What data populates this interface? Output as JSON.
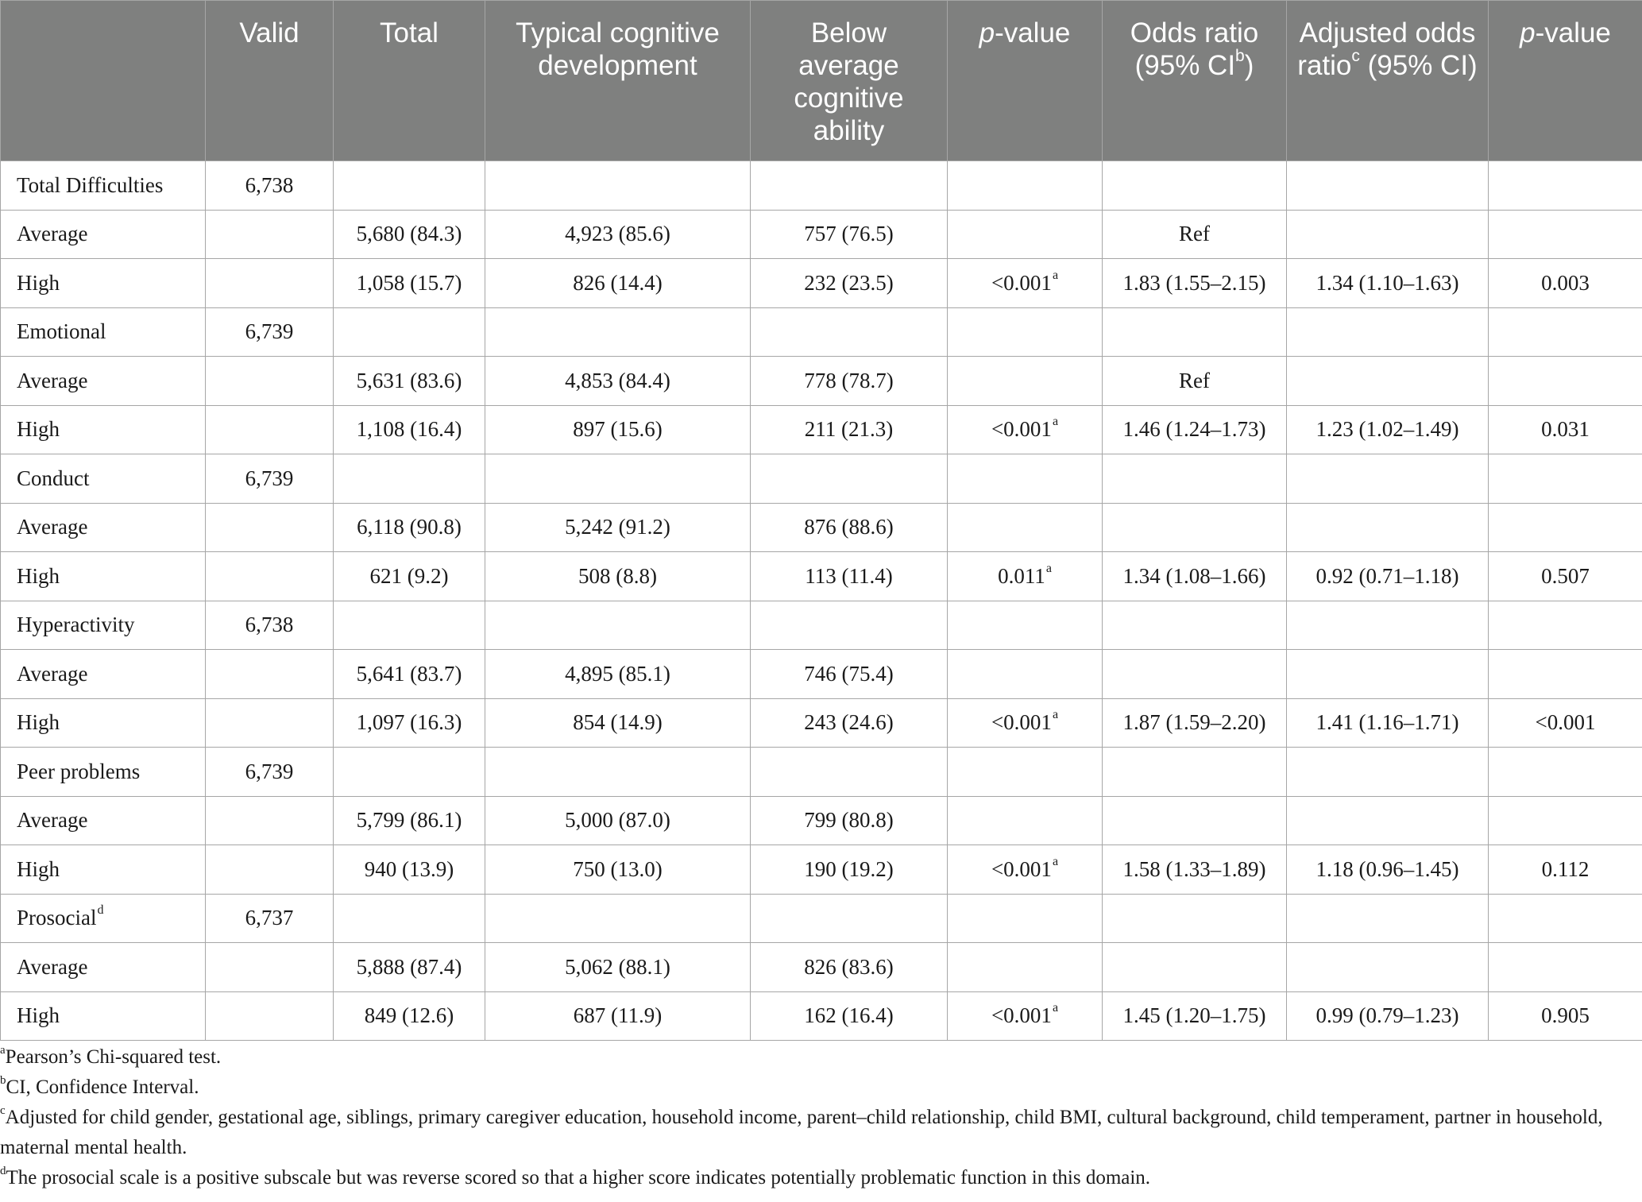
{
  "table": {
    "columns": [
      {
        "text": "",
        "italic": "",
        "rest": "",
        "sup": ""
      },
      {
        "text": "Valid",
        "italic": "",
        "rest": "",
        "sup": ""
      },
      {
        "text": "Total",
        "italic": "",
        "rest": "",
        "sup": ""
      },
      {
        "text": "Typical cognitive development",
        "italic": "",
        "rest": "",
        "sup": ""
      },
      {
        "text": "Below average cognitive ability",
        "italic": "",
        "rest": "",
        "sup": ""
      },
      {
        "text": "",
        "italic": "p",
        "rest": "-value",
        "sup": ""
      },
      {
        "text": "Odds ratio (95% CI",
        "italic": "",
        "rest": ")",
        "sup": "b"
      },
      {
        "text": "Adjusted odds ratio",
        "italic": "",
        "rest": " (95% CI)",
        "sup": "c"
      },
      {
        "text": "",
        "italic": "",
        "rest": "-value",
        "sup": "",
        "italic2": "p"
      }
    ],
    "rows": [
      {
        "label": "Total Difficulties",
        "label_sup": "",
        "valid": "6,738",
        "total": "",
        "typical": "",
        "below": "",
        "p": "",
        "p_sup": "",
        "or": "",
        "aor": "",
        "p2": ""
      },
      {
        "label": "Average",
        "label_sup": "",
        "valid": "",
        "total": "5,680 (84.3)",
        "typical": "4,923 (85.6)",
        "below": "757 (76.5)",
        "p": "",
        "p_sup": "",
        "or": "Ref",
        "aor": "",
        "p2": ""
      },
      {
        "label": "High",
        "label_sup": "",
        "valid": "",
        "total": "1,058 (15.7)",
        "typical": "826 (14.4)",
        "below": "232 (23.5)",
        "p": "<0.001",
        "p_sup": "a",
        "or": "1.83 (1.55–2.15)",
        "aor": "1.34 (1.10–1.63)",
        "p2": "0.003"
      },
      {
        "label": "Emotional",
        "label_sup": "",
        "valid": "6,739",
        "total": "",
        "typical": "",
        "below": "",
        "p": "",
        "p_sup": "",
        "or": "",
        "aor": "",
        "p2": ""
      },
      {
        "label": "Average",
        "label_sup": "",
        "valid": "",
        "total": "5,631 (83.6)",
        "typical": "4,853 (84.4)",
        "below": "778 (78.7)",
        "p": "",
        "p_sup": "",
        "or": "Ref",
        "aor": "",
        "p2": ""
      },
      {
        "label": "High",
        "label_sup": "",
        "valid": "",
        "total": "1,108 (16.4)",
        "typical": "897 (15.6)",
        "below": "211 (21.3)",
        "p": "<0.001",
        "p_sup": "a",
        "or": "1.46 (1.24–1.73)",
        "aor": "1.23 (1.02–1.49)",
        "p2": "0.031"
      },
      {
        "label": "Conduct",
        "label_sup": "",
        "valid": "6,739",
        "total": "",
        "typical": "",
        "below": "",
        "p": "",
        "p_sup": "",
        "or": "",
        "aor": "",
        "p2": ""
      },
      {
        "label": "Average",
        "label_sup": "",
        "valid": "",
        "total": "6,118 (90.8)",
        "typical": "5,242 (91.2)",
        "below": "876 (88.6)",
        "p": "",
        "p_sup": "",
        "or": "",
        "aor": "",
        "p2": ""
      },
      {
        "label": "High",
        "label_sup": "",
        "valid": "",
        "total": "621 (9.2)",
        "typical": "508 (8.8)",
        "below": "113 (11.4)",
        "p": "0.011",
        "p_sup": "a",
        "or": "1.34 (1.08–1.66)",
        "aor": "0.92 (0.71–1.18)",
        "p2": "0.507"
      },
      {
        "label": "Hyperactivity",
        "label_sup": "",
        "valid": "6,738",
        "total": "",
        "typical": "",
        "below": "",
        "p": "",
        "p_sup": "",
        "or": "",
        "aor": "",
        "p2": ""
      },
      {
        "label": "Average",
        "label_sup": "",
        "valid": "",
        "total": "5,641 (83.7)",
        "typical": "4,895 (85.1)",
        "below": "746 (75.4)",
        "p": "",
        "p_sup": "",
        "or": "",
        "aor": "",
        "p2": ""
      },
      {
        "label": "High",
        "label_sup": "",
        "valid": "",
        "total": "1,097 (16.3)",
        "typical": "854 (14.9)",
        "below": "243 (24.6)",
        "p": "<0.001",
        "p_sup": "a",
        "or": "1.87 (1.59–2.20)",
        "aor": "1.41 (1.16–1.71)",
        "p2": "<0.001"
      },
      {
        "label": "Peer problems",
        "label_sup": "",
        "valid": "6,739",
        "total": "",
        "typical": "",
        "below": "",
        "p": "",
        "p_sup": "",
        "or": "",
        "aor": "",
        "p2": ""
      },
      {
        "label": "Average",
        "label_sup": "",
        "valid": "",
        "total": "5,799 (86.1)",
        "typical": "5,000 (87.0)",
        "below": "799 (80.8)",
        "p": "",
        "p_sup": "",
        "or": "",
        "aor": "",
        "p2": ""
      },
      {
        "label": "High",
        "label_sup": "",
        "valid": "",
        "total": "940 (13.9)",
        "typical": "750 (13.0)",
        "below": "190 (19.2)",
        "p": "<0.001",
        "p_sup": "a",
        "or": "1.58 (1.33–1.89)",
        "aor": "1.18 (0.96–1.45)",
        "p2": "0.112"
      },
      {
        "label": "Prosocial",
        "label_sup": "d",
        "valid": "6,737",
        "total": "",
        "typical": "",
        "below": "",
        "p": "",
        "p_sup": "",
        "or": "",
        "aor": "",
        "p2": ""
      },
      {
        "label": "Average",
        "label_sup": "",
        "valid": "",
        "total": "5,888 (87.4)",
        "typical": "5,062 (88.1)",
        "below": "826 (83.6)",
        "p": "",
        "p_sup": "",
        "or": "",
        "aor": "",
        "p2": ""
      },
      {
        "label": "High",
        "label_sup": "",
        "valid": "",
        "total": "849 (12.6)",
        "typical": "687 (11.9)",
        "below": "162 (16.4)",
        "p": "<0.001",
        "p_sup": "a",
        "or": "1.45 (1.20–1.75)",
        "aor": "0.99 (0.79–1.23)",
        "p2": "0.905"
      }
    ]
  },
  "footnotes": [
    {
      "mark": "a",
      "text": "Pearson’s Chi-squared test."
    },
    {
      "mark": "b",
      "text": "CI, Confidence Interval."
    },
    {
      "mark": "c",
      "text": "Adjusted for child gender, gestational age, siblings, primary caregiver education, household income, parent–child relationship, child BMI, cultural background, child temperament, partner in household, maternal mental health."
    },
    {
      "mark": "d",
      "text": "The prosocial scale is a positive subscale but was reverse scored so that a higher score indicates potentially problematic function in this domain."
    }
  ]
}
